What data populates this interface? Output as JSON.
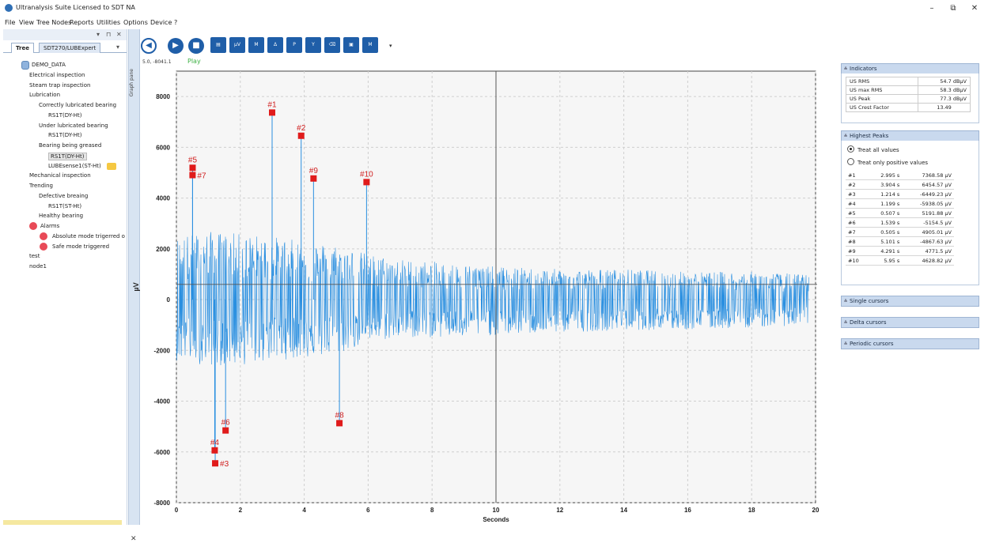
{
  "window": {
    "title": "Ultranalysis Suite Licensed to SDT NA",
    "min": "–",
    "max": "⧉",
    "close": "✕"
  },
  "menu": [
    "File",
    "View",
    "Tree Nodes",
    "Reports",
    "Utilities",
    "Options",
    "Device",
    "?"
  ],
  "left_panel": {
    "controls": [
      "▾",
      "⊓",
      "✕"
    ],
    "tabs": [
      "Tree",
      "SDT270/LUBExpert"
    ],
    "tab_arrow": "▾",
    "tree": [
      {
        "label": "DEMO_DATA",
        "level": 0,
        "icon": "database-icon"
      },
      {
        "label": "Electrical inspection",
        "level": 0
      },
      {
        "label": "Steam trap inspection",
        "level": 0
      },
      {
        "label": "Lubrication",
        "level": 0
      },
      {
        "label": "Correctly lubricated bearing",
        "level": 1
      },
      {
        "label": "RS1T(DY-Ht)",
        "level": 2
      },
      {
        "label": "Under lubricated bearing",
        "level": 1
      },
      {
        "label": "RS1T(DY-Ht)",
        "level": 2
      },
      {
        "label": "Bearing being greased",
        "level": 1
      },
      {
        "label": "RS1T(DY-Ht)",
        "level": 2,
        "selected": true
      },
      {
        "label": "LUBEsense1(ST-Ht)",
        "level": 2,
        "icon": "folder-icon"
      },
      {
        "label": "Mechanical inspection",
        "level": 0
      },
      {
        "label": "Trending",
        "level": 0
      },
      {
        "label": "Defective breaing",
        "level": 1
      },
      {
        "label": "RS1T(ST-Ht)",
        "level": 2
      },
      {
        "label": "Healthy bearing",
        "level": 1
      },
      {
        "label": "Alarms",
        "level": 1,
        "icon": "alarm-icon"
      },
      {
        "label": "Absolute mode trigerred o",
        "level": 2,
        "icon": "alarm-icon"
      },
      {
        "label": "Safe mode triggered",
        "level": 2,
        "icon": "alarm-icon"
      },
      {
        "label": "test",
        "level": 0
      },
      {
        "label": "node1",
        "level": 0
      }
    ]
  },
  "graph_pane_label": "Graph pane",
  "graph_pane_close": "✕",
  "toolbar": {
    "buttons": [
      "back-icon",
      "play-icon",
      "stop-icon",
      "report-icon",
      "fft-icon",
      "marker-icon",
      "delta-marker-icon",
      "peak-marker-icon",
      "y-marker-icon",
      "eraser-icon",
      "window-icon",
      "m-menu-icon"
    ],
    "fft_label": "µV FFT",
    "m_label": "M",
    "p_label": "P",
    "y_label": "Y",
    "dropdown": "▾"
  },
  "status": {
    "coords": "5.0, -8041.1",
    "play": "Play"
  },
  "chart_data": {
    "type": "line",
    "title": "",
    "xlabel": "Seconds",
    "ylabel": "µV",
    "xlim": [
      0,
      20
    ],
    "ylim": [
      -8000,
      9000
    ],
    "xticks": [
      0,
      2,
      4,
      6,
      8,
      10,
      12,
      14,
      16,
      18,
      20
    ],
    "yticks": [
      -8000,
      -6000,
      -4000,
      -2000,
      0,
      2000,
      4000,
      6000,
      8000
    ],
    "grid": true,
    "cursor": {
      "x": 10.0,
      "y": 600
    },
    "envelope": [
      {
        "x": 0.0,
        "hi": 2500,
        "lo": -2400
      },
      {
        "x": 1.0,
        "hi": 2700,
        "lo": -2600
      },
      {
        "x": 2.0,
        "hi": 2600,
        "lo": -2600
      },
      {
        "x": 3.0,
        "hi": 2500,
        "lo": -2400
      },
      {
        "x": 4.0,
        "hi": 2300,
        "lo": -2300
      },
      {
        "x": 5.0,
        "hi": 2200,
        "lo": -2200
      },
      {
        "x": 6.0,
        "hi": 1800,
        "lo": -1700
      },
      {
        "x": 7.0,
        "hi": 1600,
        "lo": -1500
      },
      {
        "x": 8.0,
        "hi": 1500,
        "lo": -1500
      },
      {
        "x": 9.0,
        "hi": 1400,
        "lo": -1500
      },
      {
        "x": 10.0,
        "hi": 1300,
        "lo": -1400
      },
      {
        "x": 12.0,
        "hi": 1200,
        "lo": -1300
      },
      {
        "x": 14.0,
        "hi": 1200,
        "lo": -1200
      },
      {
        "x": 16.0,
        "hi": 1100,
        "lo": -1200
      },
      {
        "x": 18.0,
        "hi": 1100,
        "lo": -1100
      },
      {
        "x": 19.8,
        "hi": 1000,
        "lo": -1000
      }
    ],
    "peaks": [
      {
        "label": "#1",
        "x": 2.995,
        "y": 7368.58
      },
      {
        "label": "#2",
        "x": 3.904,
        "y": 6454.57
      },
      {
        "label": "#3",
        "x": 1.214,
        "y": -6449.23
      },
      {
        "label": "#4",
        "x": 1.199,
        "y": -5938.05
      },
      {
        "label": "#5",
        "x": 0.507,
        "y": 5191.88
      },
      {
        "label": "#6",
        "x": 1.539,
        "y": -5154.5
      },
      {
        "label": "#7",
        "x": 0.505,
        "y": 4905.01
      },
      {
        "label": "#8",
        "x": 5.101,
        "y": -4867.63
      },
      {
        "label": "#9",
        "x": 4.291,
        "y": 4771.5
      },
      {
        "label": "#10",
        "x": 5.95,
        "y": 4628.82
      }
    ]
  },
  "indicators": {
    "header": "Indicators",
    "rows": [
      {
        "name": "US RMS",
        "value": "54.7 dBµV"
      },
      {
        "name": "US max RMS",
        "value": "58.3 dBµV"
      },
      {
        "name": "US Peak",
        "value": "77.3 dBµV"
      },
      {
        "name": "US Crest Factor",
        "value": "13.49"
      }
    ]
  },
  "highest_peaks": {
    "header": "Highest Peaks",
    "options": [
      "Treat all values",
      "Treat only positive values"
    ],
    "selected_option": 0,
    "rows": [
      {
        "id": "#1",
        "time": "2.995 s",
        "value": "7368.58 µV"
      },
      {
        "id": "#2",
        "time": "3.904 s",
        "value": "6454.57 µV"
      },
      {
        "id": "#3",
        "time": "1.214 s",
        "value": "-6449.23 µV"
      },
      {
        "id": "#4",
        "time": "1.199 s",
        "value": "-5938.05 µV"
      },
      {
        "id": "#5",
        "time": "0.507 s",
        "value": "5191.88 µV"
      },
      {
        "id": "#6",
        "time": "1.539 s",
        "value": "-5154.5 µV"
      },
      {
        "id": "#7",
        "time": "0.505 s",
        "value": "4905.01 µV"
      },
      {
        "id": "#8",
        "time": "5.101 s",
        "value": "-4867.63 µV"
      },
      {
        "id": "#9",
        "time": "4.291 s",
        "value": "4771.5 µV"
      },
      {
        "id": "#10",
        "time": "5.95 s",
        "value": "4628.82 µV"
      }
    ]
  },
  "collapsed_sections": [
    "Single cursors",
    "Delta cursors",
    "Periodic cursors"
  ],
  "colors": {
    "signal": "#2a8fe0",
    "peak_marker": "#e01b1b",
    "peak_label": "#d02020",
    "accent": "#1f5ea8",
    "panel_header": "#c9d9ee"
  }
}
